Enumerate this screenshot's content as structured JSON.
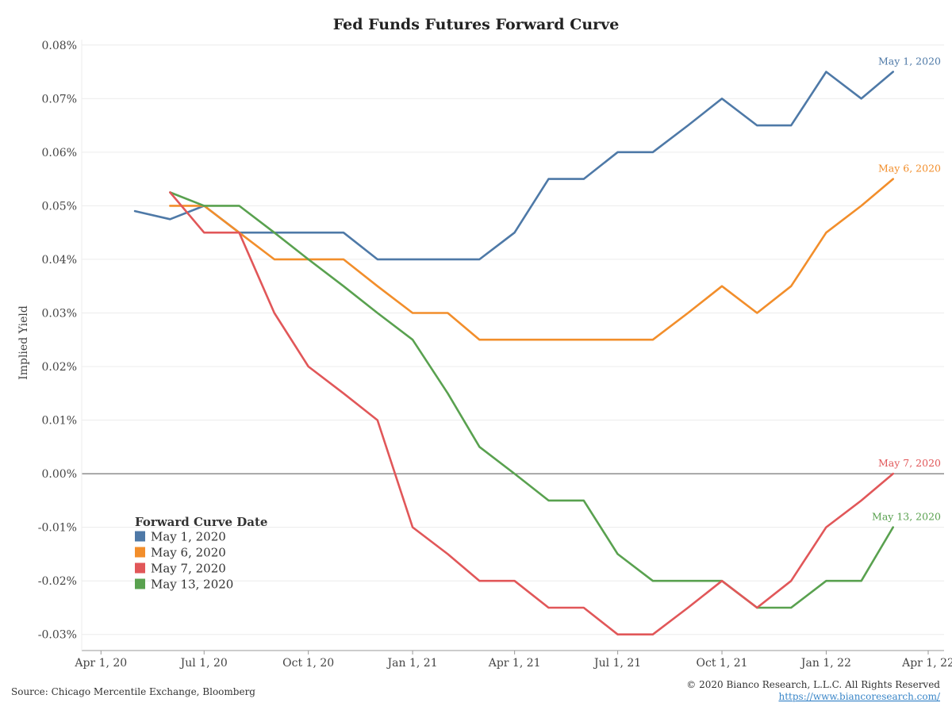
{
  "chart_data": {
    "type": "line",
    "title": "Fed Funds Futures Forward Curve",
    "xlabel": "",
    "ylabel": "Implied Yield",
    "y_unit": "%",
    "ylim": [
      -0.033,
      0.081
    ],
    "y_ticks": [
      0.08,
      0.07,
      0.06,
      0.05,
      0.04,
      0.03,
      0.02,
      0.01,
      0.0,
      -0.01,
      -0.02,
      -0.03
    ],
    "y_tick_labels": [
      "0.08%",
      "0.07%",
      "0.06%",
      "0.05%",
      "0.04%",
      "0.03%",
      "0.02%",
      "0.01%",
      "0.00%",
      "-0.01%",
      "-0.02%",
      "-0.03%"
    ],
    "xlim": [
      "2020-03-15",
      "2022-04-15"
    ],
    "x_ticks": [
      "2020-04-01",
      "2020-07-01",
      "2020-10-01",
      "2021-01-01",
      "2021-04-01",
      "2021-07-01",
      "2021-10-01",
      "2022-01-01",
      "2022-04-01"
    ],
    "x_tick_labels": [
      "Apr 1, 20",
      "Jul 1, 20",
      "Oct 1, 20",
      "Jan 1, 21",
      "Apr 1, 21",
      "Jul 1, 21",
      "Oct 1, 21",
      "Jan 1, 22",
      "Apr 1, 22"
    ],
    "zero_line": true,
    "grid": "horizontal",
    "legend": {
      "title": "Forward Curve Date",
      "placement": "bottom-left"
    },
    "series": [
      {
        "name": "May 1, 2020",
        "end_label": "May 1, 2020",
        "color": "#4e79a7",
        "x": [
          "2020-05-01",
          "2020-06-01",
          "2020-07-01",
          "2020-08-01",
          "2020-09-01",
          "2020-10-01",
          "2020-11-01",
          "2020-12-01",
          "2021-01-01",
          "2021-02-01",
          "2021-03-01",
          "2021-04-01",
          "2021-05-01",
          "2021-06-01",
          "2021-07-01",
          "2021-08-01",
          "2021-09-01",
          "2021-10-01",
          "2021-11-01",
          "2021-12-01",
          "2022-01-01",
          "2022-02-01",
          "2022-03-01"
        ],
        "y": [
          0.049,
          0.0475,
          0.05,
          0.045,
          0.045,
          0.045,
          0.045,
          0.04,
          0.04,
          0.04,
          0.04,
          0.045,
          0.055,
          0.055,
          0.06,
          0.06,
          0.065,
          0.07,
          0.065,
          0.065,
          0.075,
          0.07,
          0.075
        ]
      },
      {
        "name": "May 6, 2020",
        "end_label": "May 6, 2020",
        "color": "#f28e2b",
        "x": [
          "2020-06-01",
          "2020-07-01",
          "2020-08-01",
          "2020-09-01",
          "2020-10-01",
          "2020-11-01",
          "2020-12-01",
          "2021-01-01",
          "2021-02-01",
          "2021-03-01",
          "2021-04-01",
          "2021-05-01",
          "2021-06-01",
          "2021-07-01",
          "2021-08-01",
          "2021-09-01",
          "2021-10-01",
          "2021-11-01",
          "2021-12-01",
          "2022-01-01",
          "2022-02-01",
          "2022-03-01"
        ],
        "y": [
          0.05,
          0.05,
          0.045,
          0.04,
          0.04,
          0.04,
          0.035,
          0.03,
          0.03,
          0.025,
          0.025,
          0.025,
          0.025,
          0.025,
          0.025,
          0.03,
          0.035,
          0.03,
          0.035,
          0.045,
          0.05,
          0.055
        ]
      },
      {
        "name": "May 7, 2020",
        "end_label": "May 7, 2020",
        "color": "#e15759",
        "x": [
          "2020-06-01",
          "2020-07-01",
          "2020-08-01",
          "2020-09-01",
          "2020-10-01",
          "2020-11-01",
          "2020-12-01",
          "2021-01-01",
          "2021-02-01",
          "2021-03-01",
          "2021-04-01",
          "2021-05-01",
          "2021-06-01",
          "2021-07-01",
          "2021-08-01",
          "2021-09-01",
          "2021-10-01",
          "2021-11-01",
          "2021-12-01",
          "2022-01-01",
          "2022-02-01",
          "2022-03-01"
        ],
        "y": [
          0.0525,
          0.045,
          0.045,
          0.03,
          0.02,
          0.015,
          0.01,
          -0.01,
          -0.015,
          -0.02,
          -0.02,
          -0.025,
          -0.025,
          -0.03,
          -0.03,
          -0.025,
          -0.02,
          -0.025,
          -0.02,
          -0.01,
          -0.005,
          0.0
        ]
      },
      {
        "name": "May 13, 2020",
        "end_label": "May 13, 2020",
        "color": "#59a14f",
        "x": [
          "2020-06-01",
          "2020-07-01",
          "2020-08-01",
          "2020-09-01",
          "2020-10-01",
          "2020-11-01",
          "2020-12-01",
          "2021-01-01",
          "2021-02-01",
          "2021-03-01",
          "2021-04-01",
          "2021-05-01",
          "2021-06-01",
          "2021-07-01",
          "2021-08-01",
          "2021-09-01",
          "2021-10-01",
          "2021-11-01",
          "2021-12-01",
          "2022-01-01",
          "2022-02-01",
          "2022-03-01"
        ],
        "y": [
          0.0525,
          0.05,
          0.05,
          0.045,
          0.04,
          0.035,
          0.03,
          0.025,
          0.015,
          0.005,
          0.0,
          -0.005,
          -0.005,
          -0.015,
          -0.02,
          -0.02,
          -0.02,
          -0.025,
          -0.025,
          -0.02,
          -0.02,
          -0.01
        ]
      }
    ]
  },
  "footer": {
    "source": "Source: Chicago Mercentile Exchange, Bloomberg",
    "copyright": "© 2020 Bianco Research, L.L.C. All Rights Reserved",
    "link": "https://www.biancoresearch.com/"
  }
}
